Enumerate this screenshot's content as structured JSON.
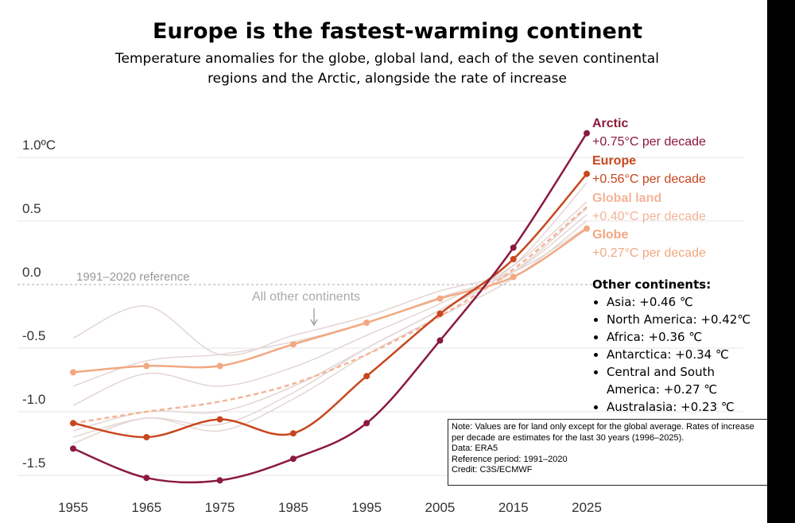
{
  "chart_data": {
    "type": "line",
    "title": "Europe is the fastest-warming continent",
    "subtitle": "Temperature anomalies for the globe, global land, each of the seven continental regions and the Arctic, alongside the rate of increase",
    "x": [
      1955,
      1965,
      1975,
      1985,
      1995,
      2005,
      2015,
      2025
    ],
    "xlim": [
      1950,
      2030
    ],
    "xticks": [
      1955,
      1965,
      1975,
      1985,
      1995,
      2005,
      2015,
      2025
    ],
    "ylim": [
      -1.6,
      1.35
    ],
    "yticks": [
      {
        "value": -1.5,
        "label": "-1.5"
      },
      {
        "value": -1,
        "label": "-1.0"
      },
      {
        "value": -0.5,
        "label": "-0.5"
      },
      {
        "value": 0,
        "label": "0.0"
      },
      {
        "value": 0.5,
        "label": "0.5"
      },
      {
        "value": 1,
        "label": "1.0ºC"
      }
    ],
    "grid": true,
    "reference_label": "1991–2020 reference",
    "series": [
      {
        "name": "Arctic",
        "rate": "+0.75°C per decade",
        "color": "#8b1a3c",
        "dashed": false,
        "markers": true,
        "values": [
          -1.29,
          -1.52,
          -1.54,
          -1.37,
          -1.09,
          -0.44,
          0.29,
          1.19
        ]
      },
      {
        "name": "Europe",
        "rate": "+0.56°C per decade",
        "color": "#c8461e",
        "dashed": false,
        "markers": true,
        "values": [
          -1.09,
          -1.2,
          -1.06,
          -1.17,
          -0.72,
          -0.23,
          0.2,
          0.87
        ]
      },
      {
        "name": "Global land",
        "rate": "+0.40°C per decade",
        "color": "#f4b497",
        "dashed": true,
        "markers": false,
        "values": [
          -1.09,
          -1.0,
          -0.92,
          -0.78,
          -0.55,
          -0.25,
          0.12,
          0.61
        ]
      },
      {
        "name": "Globe",
        "rate": "+0.27°C per decade",
        "color": "#f2a882",
        "dashed": false,
        "markers": true,
        "values": [
          -0.69,
          -0.64,
          -0.64,
          -0.47,
          -0.3,
          -0.11,
          0.06,
          0.44
        ]
      }
    ],
    "other_label": "All other continents",
    "other_color": "#e3d6d4",
    "other_series": [
      {
        "values": [
          -0.42,
          -0.17,
          -0.55,
          -0.4,
          -0.25,
          -0.05,
          0.1,
          0.45
        ]
      },
      {
        "values": [
          -0.8,
          -0.6,
          -0.55,
          -0.45,
          -0.3,
          -0.1,
          0.1,
          0.55
        ]
      },
      {
        "values": [
          -0.95,
          -0.7,
          -0.8,
          -0.65,
          -0.4,
          -0.15,
          0.15,
          0.65
        ]
      },
      {
        "values": [
          -1.2,
          -1.05,
          -1.1,
          -0.85,
          -0.5,
          -0.2,
          0.15,
          0.8
        ]
      },
      {
        "values": [
          -1.15,
          -1.0,
          -1.0,
          -0.8,
          -0.5,
          -0.2,
          0.1,
          0.6
        ]
      },
      {
        "values": [
          -1.25,
          -1.05,
          -1.15,
          -0.9,
          -0.55,
          -0.25,
          0.05,
          0.5
        ]
      }
    ],
    "other_continents": {
      "title": "Other continents:",
      "items": [
        "Asia: +0.46 ℃",
        "North America: +0.42℃",
        "Africa: +0.36 ℃",
        "Antarctica: +0.34 ℃",
        "Central and South America: +0.27 ℃",
        "Australasia: +0.23 ℃"
      ]
    },
    "note": [
      "Note: Values are for land only except for the global average. Rates of increase per decade are estimates for the last 30 years (1996–2025).",
      "Data: ERA5",
      "Reference period: 1991–2020",
      "Credit: C3S/ECMWF"
    ]
  }
}
